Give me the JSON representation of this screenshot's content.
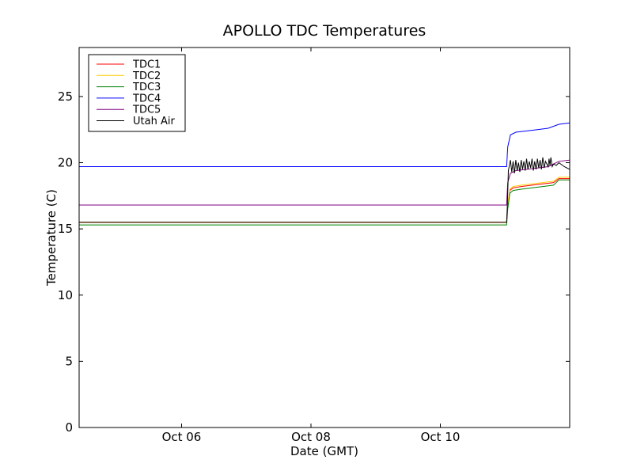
{
  "chart_data": {
    "type": "line",
    "title": "APOLLO TDC Temperatures",
    "xlabel": "Date (GMT)",
    "ylabel": "Temperature (C)",
    "xlim": [
      "Oct 04 10:00",
      "Oct 11 23:59"
    ],
    "ylim": [
      0,
      28.7
    ],
    "yticks": [
      0,
      5,
      10,
      15,
      20,
      25
    ],
    "xticks": [
      {
        "label": "Oct 06",
        "t": "Oct 06 00:00"
      },
      {
        "label": "Oct 08",
        "t": "Oct 08 00:00"
      },
      {
        "label": "Oct 10",
        "t": "Oct 10 00:00"
      }
    ],
    "grid": false,
    "legend_position": "top-left",
    "series": [
      {
        "name": "TDC1",
        "color": "#ff0000",
        "x": [
          "Oct 04 10:00",
          "Oct 11 00:35",
          "Oct 11 01:00",
          "Oct 11 01:45",
          "Oct 11 03:00",
          "Oct 11 06:00",
          "Oct 11 10:00",
          "Oct 11 14:00",
          "Oct 11 18:00",
          "Oct 11 20:00",
          "Oct 11 23:59"
        ],
        "values": [
          15.5,
          15.5,
          16.8,
          17.9,
          18.1,
          18.2,
          18.3,
          18.4,
          18.5,
          18.8,
          18.8
        ]
      },
      {
        "name": "TDC2",
        "color": "#ffcc00",
        "x": [
          "Oct 04 10:00",
          "Oct 11 00:35",
          "Oct 11 01:00",
          "Oct 11 01:45",
          "Oct 11 03:00",
          "Oct 11 06:00",
          "Oct 11 10:00",
          "Oct 11 14:00",
          "Oct 11 18:00",
          "Oct 11 20:00",
          "Oct 11 23:59"
        ],
        "values": [
          15.5,
          15.5,
          16.9,
          18.0,
          18.2,
          18.3,
          18.4,
          18.5,
          18.6,
          18.9,
          18.9
        ]
      },
      {
        "name": "TDC3",
        "color": "#008000",
        "x": [
          "Oct 04 10:00",
          "Oct 11 00:35",
          "Oct 11 01:00",
          "Oct 11 01:45",
          "Oct 11 03:00",
          "Oct 11 06:00",
          "Oct 11 10:00",
          "Oct 11 14:00",
          "Oct 11 18:00",
          "Oct 11 20:00",
          "Oct 11 23:59"
        ],
        "values": [
          15.3,
          15.3,
          16.5,
          17.7,
          17.9,
          18.0,
          18.1,
          18.2,
          18.3,
          18.7,
          18.7
        ]
      },
      {
        "name": "TDC4",
        "color": "#0000ff",
        "x": [
          "Oct 04 10:00",
          "Oct 11 00:35",
          "Oct 11 01:00",
          "Oct 11 02:00",
          "Oct 11 04:00",
          "Oct 11 08:00",
          "Oct 11 12:00",
          "Oct 11 16:00",
          "Oct 11 20:00",
          "Oct 11 23:59"
        ],
        "values": [
          19.7,
          19.7,
          21.2,
          22.1,
          22.3,
          22.4,
          22.5,
          22.6,
          22.9,
          23.0
        ]
      },
      {
        "name": "TDC5",
        "color": "#800080",
        "x": [
          "Oct 04 10:00",
          "Oct 11 00:35",
          "Oct 11 01:00",
          "Oct 11 02:00",
          "Oct 11 04:00",
          "Oct 11 08:00",
          "Oct 11 12:00",
          "Oct 11 16:00",
          "Oct 11 20:00",
          "Oct 11 23:59"
        ],
        "values": [
          16.8,
          16.8,
          18.5,
          19.2,
          19.4,
          19.5,
          19.6,
          19.7,
          20.1,
          20.2
        ]
      },
      {
        "name": "Utah Air",
        "color": "#000000",
        "x": [
          "Oct 04 10:00",
          "Oct 11 00:35",
          "Oct 11 00:50",
          "Oct 11 01:15",
          "Oct 11 02:00",
          "Oct 11 02:30",
          "Oct 11 03:00",
          "Oct 11 03:30",
          "Oct 11 04:00",
          "Oct 11 04:30",
          "Oct 11 05:00",
          "Oct 11 05:30",
          "Oct 11 06:00",
          "Oct 11 06:30",
          "Oct 11 07:00",
          "Oct 11 07:30",
          "Oct 11 08:00",
          "Oct 11 08:30",
          "Oct 11 09:00",
          "Oct 11 09:30",
          "Oct 11 10:00",
          "Oct 11 10:30",
          "Oct 11 11:00",
          "Oct 11 11:30",
          "Oct 11 12:00",
          "Oct 11 12:30",
          "Oct 11 13:00",
          "Oct 11 13:30",
          "Oct 11 14:00",
          "Oct 11 14:30",
          "Oct 11 15:00",
          "Oct 11 16:00",
          "Oct 11 16:20",
          "Oct 11 16:40",
          "Oct 11 17:00",
          "Oct 11 17:30",
          "Oct 11 18:00",
          "Oct 11 19:00",
          "Oct 11 20:00",
          "Oct 11 22:00",
          "Oct 11 23:59"
        ],
        "values": [
          15.5,
          15.5,
          16.6,
          19.4,
          20.2,
          19.3,
          20.1,
          19.2,
          20.2,
          19.4,
          20.0,
          19.3,
          20.2,
          19.5,
          20.1,
          19.4,
          20.3,
          19.5,
          20.1,
          19.6,
          20.3,
          19.4,
          20.1,
          19.5,
          20.3,
          19.6,
          20.2,
          19.5,
          20.4,
          19.6,
          20.1,
          19.7,
          20.3,
          19.8,
          20.4,
          19.7,
          19.9,
          19.8,
          20.0,
          19.7,
          19.5
        ]
      }
    ]
  }
}
